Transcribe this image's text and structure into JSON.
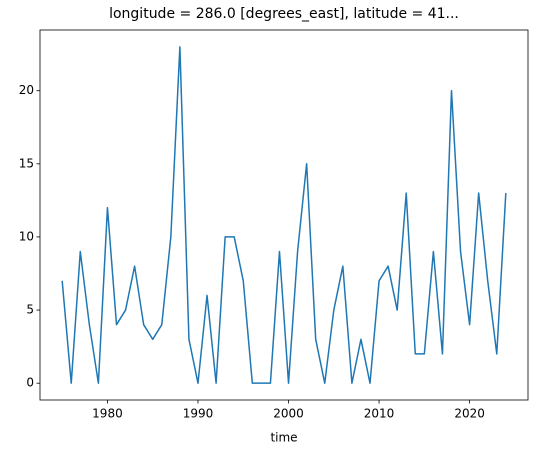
{
  "chart_data": {
    "type": "line",
    "title": "longitude = 286.0 [degrees_east], latitude = 41...",
    "xlabel": "time",
    "x": [
      1975,
      1976,
      1977,
      1978,
      1979,
      1980,
      1981,
      1982,
      1983,
      1984,
      1985,
      1986,
      1987,
      1988,
      1989,
      1990,
      1991,
      1992,
      1993,
      1994,
      1995,
      1996,
      1997,
      1998,
      1999,
      2000,
      2001,
      2002,
      2003,
      2004,
      2005,
      2006,
      2007,
      2008,
      2009,
      2010,
      2011,
      2012,
      2013,
      2014,
      2015,
      2016,
      2017,
      2018,
      2019,
      2020,
      2021,
      2022,
      2023,
      2024
    ],
    "series": [
      {
        "color": "#1f77b4",
        "values": [
          7,
          0,
          9,
          4,
          0,
          12,
          4,
          5,
          8,
          4,
          3,
          4,
          10,
          23,
          3,
          0,
          6,
          0,
          10,
          10,
          7,
          0,
          0,
          0,
          9,
          0,
          9,
          15,
          3,
          0,
          5,
          8,
          0,
          3,
          0,
          7,
          8,
          5,
          13,
          2,
          2,
          9,
          2,
          20,
          9,
          4,
          13,
          7,
          2,
          13
        ]
      }
    ],
    "xlim": [
      1972.55,
      2026.45
    ],
    "xticks": [
      1980,
      1990,
      2000,
      2010,
      2020
    ],
    "ylim": [
      -1.15,
      24.15
    ],
    "yticks": [
      0,
      5,
      10,
      15,
      20
    ],
    "grid": false
  }
}
